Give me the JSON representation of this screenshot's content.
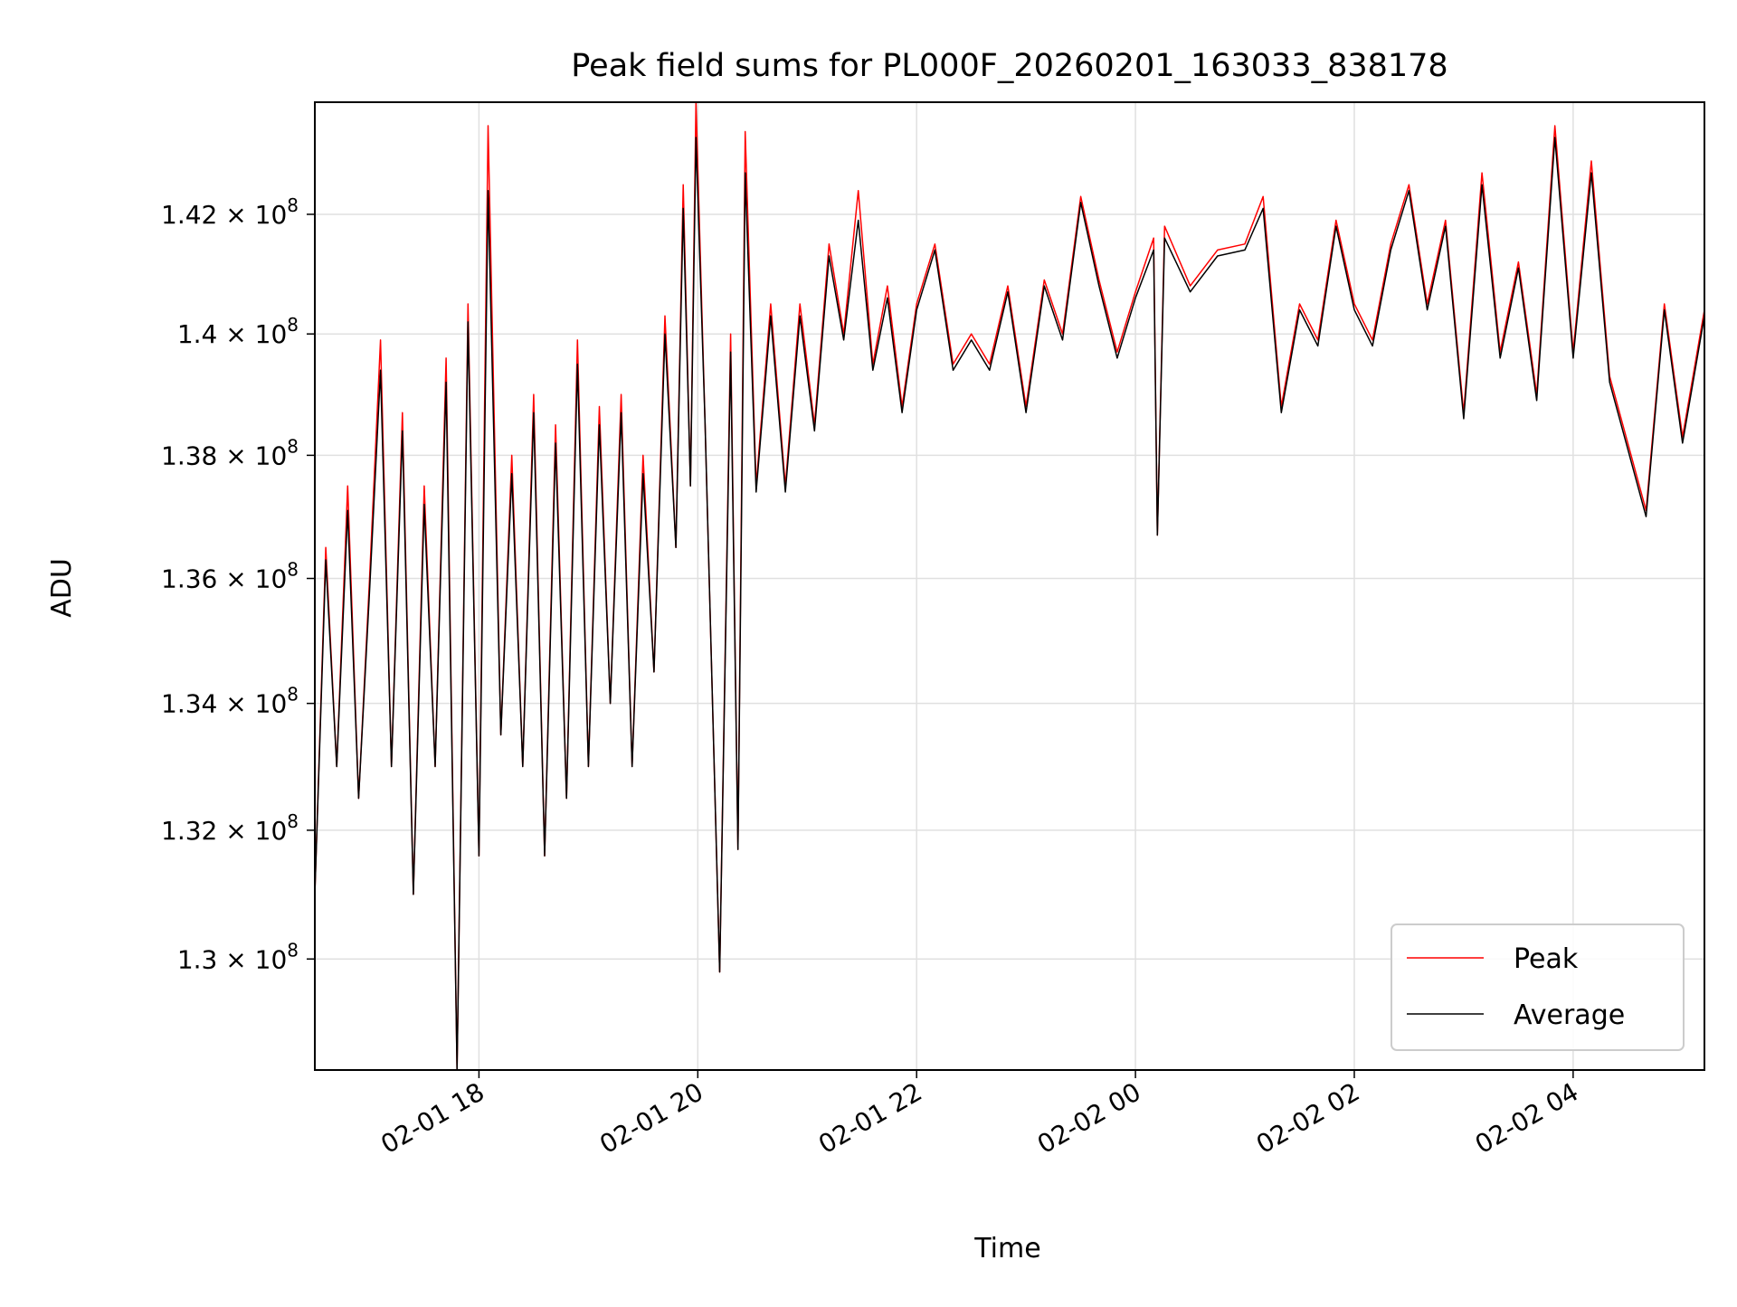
{
  "chart_data": {
    "type": "line",
    "title": "Peak field sums for PL000F_20260201_163033_838178",
    "xlabel": "Time",
    "ylabel": "ADU",
    "y_scale": "log",
    "grid": true,
    "legend_position": "lower-right",
    "xlim": [
      "2026-02-01 16:30",
      "2026-02-02 05:12"
    ],
    "ylim": [
      128300000,
      143900000
    ],
    "x_ticks": [
      {
        "label": "02-01 18",
        "value": "2026-02-01 18:00"
      },
      {
        "label": "02-01 20",
        "value": "2026-02-01 20:00"
      },
      {
        "label": "02-01 22",
        "value": "2026-02-01 22:00"
      },
      {
        "label": "02-02 00",
        "value": "2026-02-02 00:00"
      },
      {
        "label": "02-02 02",
        "value": "2026-02-02 02:00"
      },
      {
        "label": "02-02 04",
        "value": "2026-02-02 04:00"
      }
    ],
    "y_ticks": [
      {
        "mant": "1.3",
        "value": 130000000
      },
      {
        "mant": "1.32",
        "value": 132000000
      },
      {
        "mant": "1.34",
        "value": 134000000
      },
      {
        "mant": "1.36",
        "value": 136000000
      },
      {
        "mant": "1.38",
        "value": 138000000
      },
      {
        "mant": "1.4",
        "value": 140000000
      },
      {
        "mant": "1.42",
        "value": 142000000
      }
    ],
    "y_tick_suffix": "× 10",
    "y_tick_exponent": "8",
    "series": [
      {
        "name": "Peak",
        "color": "#ff0000",
        "points": [
          [
            "2026-02-01 16:30",
            131.0
          ],
          [
            "2026-02-01 16:36",
            136.5
          ],
          [
            "2026-02-01 16:42",
            133.0
          ],
          [
            "2026-02-01 16:48",
            137.5
          ],
          [
            "2026-02-01 16:54",
            132.5
          ],
          [
            "2026-02-01 17:00",
            136.0
          ],
          [
            "2026-02-01 17:06",
            139.9
          ],
          [
            "2026-02-01 17:12",
            133.0
          ],
          [
            "2026-02-01 17:18",
            138.7
          ],
          [
            "2026-02-01 17:24",
            131.0
          ],
          [
            "2026-02-01 17:30",
            137.5
          ],
          [
            "2026-02-01 17:36",
            133.0
          ],
          [
            "2026-02-01 17:42",
            139.6
          ],
          [
            "2026-02-01 17:48",
            128.3
          ],
          [
            "2026-02-01 17:54",
            140.5
          ],
          [
            "2026-02-01 18:00",
            131.6
          ],
          [
            "2026-02-01 18:05",
            143.5
          ],
          [
            "2026-02-01 18:12",
            133.5
          ],
          [
            "2026-02-01 18:18",
            138.0
          ],
          [
            "2026-02-01 18:24",
            133.0
          ],
          [
            "2026-02-01 18:30",
            139.0
          ],
          [
            "2026-02-01 18:36",
            131.6
          ],
          [
            "2026-02-01 18:42",
            138.5
          ],
          [
            "2026-02-01 18:48",
            132.5
          ],
          [
            "2026-02-01 18:54",
            139.9
          ],
          [
            "2026-02-01 19:00",
            133.0
          ],
          [
            "2026-02-01 19:06",
            138.8
          ],
          [
            "2026-02-01 19:12",
            134.0
          ],
          [
            "2026-02-01 19:18",
            139.0
          ],
          [
            "2026-02-01 19:24",
            133.0
          ],
          [
            "2026-02-01 19:30",
            138.0
          ],
          [
            "2026-02-01 19:36",
            134.5
          ],
          [
            "2026-02-01 19:42",
            140.3
          ],
          [
            "2026-02-01 19:48",
            136.5
          ],
          [
            "2026-02-01 19:52",
            142.5
          ],
          [
            "2026-02-01 19:56",
            137.5
          ],
          [
            "2026-02-01 19:59",
            143.9
          ],
          [
            "2026-02-01 20:04",
            138.5
          ],
          [
            "2026-02-01 20:12",
            129.8
          ],
          [
            "2026-02-01 20:18",
            140.0
          ],
          [
            "2026-02-01 20:22",
            131.7
          ],
          [
            "2026-02-01 20:26",
            143.4
          ],
          [
            "2026-02-01 20:32",
            137.5
          ],
          [
            "2026-02-01 20:40",
            140.5
          ],
          [
            "2026-02-01 20:48",
            137.5
          ],
          [
            "2026-02-01 20:56",
            140.5
          ],
          [
            "2026-02-01 21:04",
            138.5
          ],
          [
            "2026-02-01 21:12",
            141.5
          ],
          [
            "2026-02-01 21:20",
            140.0
          ],
          [
            "2026-02-01 21:28",
            142.4
          ],
          [
            "2026-02-01 21:36",
            139.5
          ],
          [
            "2026-02-01 21:44",
            140.8
          ],
          [
            "2026-02-01 21:52",
            138.8
          ],
          [
            "2026-02-01 22:00",
            140.5
          ],
          [
            "2026-02-01 22:10",
            141.5
          ],
          [
            "2026-02-01 22:20",
            139.5
          ],
          [
            "2026-02-01 22:30",
            140.0
          ],
          [
            "2026-02-01 22:40",
            139.5
          ],
          [
            "2026-02-01 22:50",
            140.8
          ],
          [
            "2026-02-01 23:00",
            138.8
          ],
          [
            "2026-02-01 23:10",
            140.9
          ],
          [
            "2026-02-01 23:20",
            140.0
          ],
          [
            "2026-02-01 23:30",
            142.3
          ],
          [
            "2026-02-01 23:40",
            140.9
          ],
          [
            "2026-02-01 23:50",
            139.7
          ],
          [
            "2026-02-02 00:00",
            140.7
          ],
          [
            "2026-02-02 00:10",
            141.6
          ],
          [
            "2026-02-02 00:12",
            136.7
          ],
          [
            "2026-02-02 00:16",
            141.8
          ],
          [
            "2026-02-02 00:30",
            140.8
          ],
          [
            "2026-02-02 00:45",
            141.4
          ],
          [
            "2026-02-02 01:00",
            141.5
          ],
          [
            "2026-02-02 01:10",
            142.3
          ],
          [
            "2026-02-02 01:20",
            138.8
          ],
          [
            "2026-02-02 01:30",
            140.5
          ],
          [
            "2026-02-02 01:40",
            139.9
          ],
          [
            "2026-02-02 01:50",
            141.9
          ],
          [
            "2026-02-02 02:00",
            140.5
          ],
          [
            "2026-02-02 02:10",
            139.9
          ],
          [
            "2026-02-02 02:20",
            141.5
          ],
          [
            "2026-02-02 02:30",
            142.5
          ],
          [
            "2026-02-02 02:40",
            140.5
          ],
          [
            "2026-02-02 02:50",
            141.9
          ],
          [
            "2026-02-02 03:00",
            138.7
          ],
          [
            "2026-02-02 03:10",
            142.7
          ],
          [
            "2026-02-02 03:20",
            139.7
          ],
          [
            "2026-02-02 03:30",
            141.2
          ],
          [
            "2026-02-02 03:40",
            139.0
          ],
          [
            "2026-02-02 03:50",
            143.5
          ],
          [
            "2026-02-02 04:00",
            139.7
          ],
          [
            "2026-02-02 04:10",
            142.9
          ],
          [
            "2026-02-02 04:20",
            139.3
          ],
          [
            "2026-02-02 04:30",
            138.2
          ],
          [
            "2026-02-02 04:40",
            137.1
          ],
          [
            "2026-02-02 04:50",
            140.5
          ],
          [
            "2026-02-02 05:00",
            138.3
          ],
          [
            "2026-02-02 05:12",
            140.4
          ]
        ]
      },
      {
        "name": "Average",
        "color": "#000000",
        "points": [
          [
            "2026-02-01 16:30",
            131.0
          ],
          [
            "2026-02-01 16:36",
            136.3
          ],
          [
            "2026-02-01 16:42",
            133.0
          ],
          [
            "2026-02-01 16:48",
            137.1
          ],
          [
            "2026-02-01 16:54",
            132.5
          ],
          [
            "2026-02-01 17:00",
            135.8
          ],
          [
            "2026-02-01 17:06",
            139.4
          ],
          [
            "2026-02-01 17:12",
            133.0
          ],
          [
            "2026-02-01 17:18",
            138.4
          ],
          [
            "2026-02-01 17:24",
            131.0
          ],
          [
            "2026-02-01 17:30",
            137.2
          ],
          [
            "2026-02-01 17:36",
            133.0
          ],
          [
            "2026-02-01 17:42",
            139.2
          ],
          [
            "2026-02-01 17:48",
            128.3
          ],
          [
            "2026-02-01 17:54",
            140.2
          ],
          [
            "2026-02-01 18:00",
            131.6
          ],
          [
            "2026-02-01 18:05",
            142.4
          ],
          [
            "2026-02-01 18:12",
            133.5
          ],
          [
            "2026-02-01 18:18",
            137.7
          ],
          [
            "2026-02-01 18:24",
            133.0
          ],
          [
            "2026-02-01 18:30",
            138.7
          ],
          [
            "2026-02-01 18:36",
            131.6
          ],
          [
            "2026-02-01 18:42",
            138.2
          ],
          [
            "2026-02-01 18:48",
            132.5
          ],
          [
            "2026-02-01 18:54",
            139.5
          ],
          [
            "2026-02-01 19:00",
            133.0
          ],
          [
            "2026-02-01 19:06",
            138.5
          ],
          [
            "2026-02-01 19:12",
            134.0
          ],
          [
            "2026-02-01 19:18",
            138.7
          ],
          [
            "2026-02-01 19:24",
            133.0
          ],
          [
            "2026-02-01 19:30",
            137.7
          ],
          [
            "2026-02-01 19:36",
            134.5
          ],
          [
            "2026-02-01 19:42",
            140.0
          ],
          [
            "2026-02-01 19:48",
            136.5
          ],
          [
            "2026-02-01 19:52",
            142.1
          ],
          [
            "2026-02-01 19:56",
            137.5
          ],
          [
            "2026-02-01 19:59",
            143.3
          ],
          [
            "2026-02-01 20:04",
            138.5
          ],
          [
            "2026-02-01 20:12",
            129.8
          ],
          [
            "2026-02-01 20:18",
            139.7
          ],
          [
            "2026-02-01 20:22",
            131.7
          ],
          [
            "2026-02-01 20:26",
            142.7
          ],
          [
            "2026-02-01 20:32",
            137.4
          ],
          [
            "2026-02-01 20:40",
            140.3
          ],
          [
            "2026-02-01 20:48",
            137.4
          ],
          [
            "2026-02-01 20:56",
            140.3
          ],
          [
            "2026-02-01 21:04",
            138.4
          ],
          [
            "2026-02-01 21:12",
            141.3
          ],
          [
            "2026-02-01 21:20",
            139.9
          ],
          [
            "2026-02-01 21:28",
            141.9
          ],
          [
            "2026-02-01 21:36",
            139.4
          ],
          [
            "2026-02-01 21:44",
            140.6
          ],
          [
            "2026-02-01 21:52",
            138.7
          ],
          [
            "2026-02-01 22:00",
            140.4
          ],
          [
            "2026-02-01 22:10",
            141.4
          ],
          [
            "2026-02-01 22:20",
            139.4
          ],
          [
            "2026-02-01 22:30",
            139.9
          ],
          [
            "2026-02-01 22:40",
            139.4
          ],
          [
            "2026-02-01 22:50",
            140.7
          ],
          [
            "2026-02-01 23:00",
            138.7
          ],
          [
            "2026-02-01 23:10",
            140.8
          ],
          [
            "2026-02-01 23:20",
            139.9
          ],
          [
            "2026-02-01 23:30",
            142.2
          ],
          [
            "2026-02-01 23:40",
            140.8
          ],
          [
            "2026-02-01 23:50",
            139.6
          ],
          [
            "2026-02-02 00:00",
            140.6
          ],
          [
            "2026-02-02 00:10",
            141.4
          ],
          [
            "2026-02-02 00:12",
            136.7
          ],
          [
            "2026-02-02 00:16",
            141.6
          ],
          [
            "2026-02-02 00:30",
            140.7
          ],
          [
            "2026-02-02 00:45",
            141.3
          ],
          [
            "2026-02-02 01:00",
            141.4
          ],
          [
            "2026-02-02 01:10",
            142.1
          ],
          [
            "2026-02-02 01:20",
            138.7
          ],
          [
            "2026-02-02 01:30",
            140.4
          ],
          [
            "2026-02-02 01:40",
            139.8
          ],
          [
            "2026-02-02 01:50",
            141.8
          ],
          [
            "2026-02-02 02:00",
            140.4
          ],
          [
            "2026-02-02 02:10",
            139.8
          ],
          [
            "2026-02-02 02:20",
            141.4
          ],
          [
            "2026-02-02 02:30",
            142.4
          ],
          [
            "2026-02-02 02:40",
            140.4
          ],
          [
            "2026-02-02 02:50",
            141.8
          ],
          [
            "2026-02-02 03:00",
            138.6
          ],
          [
            "2026-02-02 03:10",
            142.5
          ],
          [
            "2026-02-02 03:20",
            139.6
          ],
          [
            "2026-02-02 03:30",
            141.1
          ],
          [
            "2026-02-02 03:40",
            138.9
          ],
          [
            "2026-02-02 03:50",
            143.3
          ],
          [
            "2026-02-02 04:00",
            139.6
          ],
          [
            "2026-02-02 04:10",
            142.7
          ],
          [
            "2026-02-02 04:20",
            139.2
          ],
          [
            "2026-02-02 04:30",
            138.1
          ],
          [
            "2026-02-02 04:40",
            137.0
          ],
          [
            "2026-02-02 04:50",
            140.4
          ],
          [
            "2026-02-02 05:00",
            138.2
          ],
          [
            "2026-02-02 05:12",
            140.3
          ]
        ]
      }
    ]
  }
}
